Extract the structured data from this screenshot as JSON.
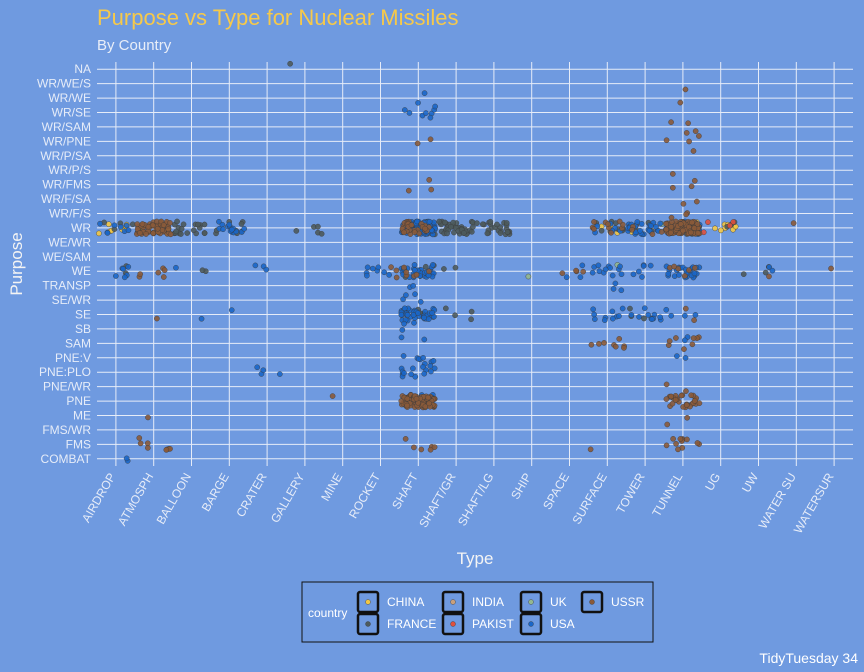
{
  "chart_data": {
    "type": "scatter",
    "title": "Purpose vs Type for Nuclear Missiles",
    "subtitle": "By Country",
    "xlabel": "Type",
    "ylabel": "Purpose",
    "caption": "TidyTuesday 34",
    "grid": true,
    "legend_position": "bottom",
    "legend_title": "country",
    "x_categories": [
      "AIRDROP",
      "ATMOSPH",
      "BALLOON",
      "BARGE",
      "CRATER",
      "GALLERY",
      "MINE",
      "ROCKET",
      "SHAFT",
      "SHAFT/GR",
      "SHAFT/LG",
      "SHIP",
      "SPACE",
      "SURFACE",
      "TOWER",
      "TUNNEL",
      "UG",
      "UW",
      "WATER SU",
      "WATERSUR"
    ],
    "y_categories": [
      "COMBAT",
      "FMS",
      "FMS/WR",
      "ME",
      "PNE",
      "PNE/WR",
      "PNE:PLO",
      "PNE:V",
      "SAM",
      "SB",
      "SE",
      "SE/WR",
      "TRANSP",
      "WE",
      "WE/SAM",
      "WE/WR",
      "WR",
      "WR/F/S",
      "WR/F/SA",
      "WR/FMS",
      "WR/P/S",
      "WR/P/SA",
      "WR/PNE",
      "WR/SAM",
      "WR/SE",
      "WR/WE",
      "WR/WE/S",
      "NA"
    ],
    "series": [
      {
        "name": "CHINA",
        "color": "#f2c744",
        "points": [
          [
            "AIRDROP",
            "WR",
            8
          ],
          [
            "ATMOSPH",
            "WR",
            12
          ],
          [
            "SHAFT",
            "WR",
            4
          ],
          [
            "TUNNEL",
            "WR",
            6
          ],
          [
            "UG",
            "WR",
            8
          ],
          [
            "SURFACE",
            "WR",
            3
          ],
          [
            "TOWER",
            "WR",
            2
          ]
        ]
      },
      {
        "name": "FRANCE",
        "color": "#4d5a5c",
        "points": [
          [
            "AIRDROP",
            "WR",
            4
          ],
          [
            "BALLOON",
            "WR",
            20
          ],
          [
            "BARGE",
            "WR",
            5
          ],
          [
            "GALLERY",
            "WR",
            5
          ],
          [
            "SHAFT",
            "WR",
            20
          ],
          [
            "SHAFT/GR",
            "WR",
            40
          ],
          [
            "SHAFT/LG",
            "WR",
            25
          ],
          [
            "SURFACE",
            "WR",
            8
          ],
          [
            "TOWER",
            "WR",
            6
          ],
          [
            "UG",
            "WR",
            3
          ],
          [
            "AIRDROP",
            "WE",
            2
          ],
          [
            "BALLOON",
            "WE",
            2
          ],
          [
            "BARGE",
            "WR",
            3
          ],
          [
            "SHAFT",
            "WE",
            4
          ],
          [
            "SHAFT/GR",
            "SE",
            4
          ],
          [
            "SHAFT/GR",
            "WE",
            2
          ],
          [
            "TOWER",
            "SE",
            3
          ],
          [
            "TUNNEL",
            "WR",
            4
          ],
          [
            "UW",
            "WE",
            3
          ],
          [
            "SHAFT",
            "SE",
            3
          ],
          [
            "GALLERY",
            "NA",
            1
          ]
        ]
      },
      {
        "name": "INDIA",
        "color": "#c9a07c",
        "points": [
          [
            "SHAFT",
            "WR",
            1
          ],
          [
            "TUNNEL",
            "WR",
            1
          ]
        ]
      },
      {
        "name": "PAKIST",
        "color": "#e0503c",
        "points": [
          [
            "UG",
            "WR",
            4
          ]
        ]
      },
      {
        "name": "UK",
        "color": "#93b890",
        "points": [
          [
            "SHIP",
            "WE",
            1
          ],
          [
            "SURFACE",
            "WE",
            1
          ],
          [
            "TOWER",
            "WR",
            1
          ]
        ]
      },
      {
        "name": "USA",
        "color": "#1a66c8",
        "points": [
          [
            "AIRDROP",
            "WR",
            8
          ],
          [
            "AIRDROP",
            "WE",
            6
          ],
          [
            "AIRDROP",
            "COMBAT",
            2
          ],
          [
            "BALLOON",
            "SE",
            1
          ],
          [
            "BALLOON",
            "WE",
            1
          ],
          [
            "BARGE",
            "WR",
            15
          ],
          [
            "BARGE",
            "SE",
            1
          ],
          [
            "CRATER",
            "PNE:PLO",
            4
          ],
          [
            "CRATER",
            "WE",
            3
          ],
          [
            "ROCKET",
            "WE",
            8
          ],
          [
            "SHAFT",
            "WR/WE",
            2
          ],
          [
            "SHAFT",
            "WR/SE",
            8
          ],
          [
            "SHAFT",
            "WR",
            80
          ],
          [
            "SHAFT",
            "WE",
            30
          ],
          [
            "SHAFT",
            "SE/WR",
            4
          ],
          [
            "SHAFT",
            "SE",
            45
          ],
          [
            "SHAFT",
            "SB",
            3
          ],
          [
            "SHAFT",
            "SAM",
            2
          ],
          [
            "SHAFT",
            "PNE:V",
            8
          ],
          [
            "SHAFT",
            "PNE:PLO",
            14
          ],
          [
            "SHAFT",
            "PNE",
            4
          ],
          [
            "SHAFT",
            "TRANSP",
            2
          ],
          [
            "SPACE",
            "WE",
            3
          ],
          [
            "SURFACE",
            "WE",
            12
          ],
          [
            "SURFACE",
            "SE",
            10
          ],
          [
            "SURFACE",
            "TRANSP",
            3
          ],
          [
            "SURFACE",
            "WR",
            6
          ],
          [
            "TOWER",
            "WR",
            25
          ],
          [
            "TOWER",
            "SE",
            10
          ],
          [
            "TOWER",
            "WE",
            6
          ],
          [
            "TUNNEL",
            "WR",
            40
          ],
          [
            "TUNNEL",
            "WE",
            25
          ],
          [
            "TUNNEL",
            "SE",
            4
          ],
          [
            "TUNNEL",
            "SAM",
            2
          ],
          [
            "TUNNEL",
            "PNE:V",
            2
          ],
          [
            "UW",
            "WE",
            2
          ]
        ]
      },
      {
        "name": "USSR",
        "color": "#8a5a3a",
        "points": [
          [
            "ATMOSPH",
            "WR",
            60
          ],
          [
            "ATMOSPH",
            "WE",
            6
          ],
          [
            "ATMOSPH",
            "FMS",
            8
          ],
          [
            "ATMOSPH",
            "ME",
            1
          ],
          [
            "ATMOSPH",
            "SE",
            1
          ],
          [
            "MINE",
            "PNE",
            1
          ],
          [
            "ROCKET",
            "WE",
            3
          ],
          [
            "SHAFT",
            "WR",
            30
          ],
          [
            "SHAFT",
            "PNE",
            90
          ],
          [
            "SHAFT",
            "WE",
            6
          ],
          [
            "SHAFT",
            "FMS",
            6
          ],
          [
            "SHAFT",
            "WR/FMS",
            3
          ],
          [
            "SHAFT",
            "WR/PNE",
            2
          ],
          [
            "SPACE",
            "WE",
            4
          ],
          [
            "SURFACE",
            "WR",
            10
          ],
          [
            "SURFACE",
            "SAM",
            8
          ],
          [
            "SURFACE",
            "FMS",
            1
          ],
          [
            "TOWER",
            "WR",
            4
          ],
          [
            "TUNNEL",
            "WR",
            100
          ],
          [
            "TUNNEL",
            "PNE",
            30
          ],
          [
            "TUNNEL",
            "FMS",
            12
          ],
          [
            "TUNNEL",
            "WR/SAM",
            4
          ],
          [
            "TUNNEL",
            "SAM",
            8
          ],
          [
            "TUNNEL",
            "FMS/WR",
            1
          ],
          [
            "TUNNEL",
            "WE",
            6
          ],
          [
            "TUNNEL",
            "WR/FMS",
            3
          ],
          [
            "TUNNEL",
            "PNE/WR",
            2
          ],
          [
            "TUNNEL",
            "WR/PNE",
            3
          ],
          [
            "TUNNEL",
            "WR/F/S",
            3
          ],
          [
            "TUNNEL",
            "WR/F/SA",
            2
          ],
          [
            "TUNNEL",
            "WR/P/S",
            1
          ],
          [
            "TUNNEL",
            "WR/P/SA",
            1
          ],
          [
            "TUNNEL",
            "WR/WE",
            1
          ],
          [
            "TUNNEL",
            "WR/WE/S",
            1
          ],
          [
            "TUNNEL",
            "SE",
            2
          ],
          [
            "TUNNEL",
            "ME",
            1
          ],
          [
            "WATERSUR",
            "WE",
            1
          ],
          [
            "WATER SU",
            "WR",
            1
          ],
          [
            "UW",
            "WE",
            1
          ]
        ]
      }
    ],
    "legend": {
      "rows": [
        [
          "CHINA",
          "INDIA",
          "UK",
          "USSR"
        ],
        [
          "FRANCE",
          "PAKIST",
          "USA"
        ]
      ]
    }
  }
}
